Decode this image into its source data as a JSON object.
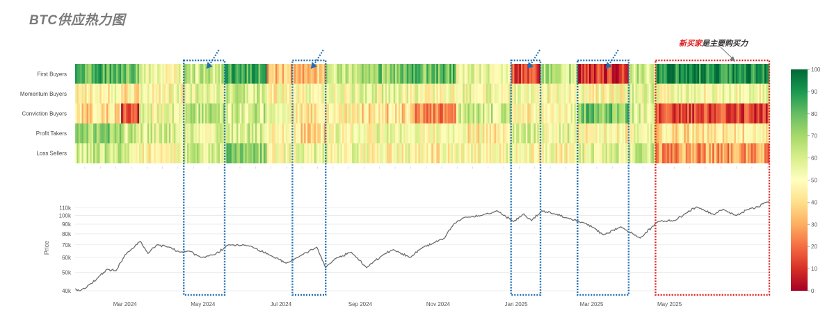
{
  "title": "BTC供应热力图",
  "annotation": {
    "highlight": "新买家",
    "rest": "是主要购买力"
  },
  "colors": {
    "blue_box": "#1f6fb5",
    "red_box": "#e02020",
    "price_line": "#6b6b6b",
    "grid": "#e8e8e8",
    "colorscale": [
      "#a50026",
      "#d73027",
      "#f46d43",
      "#fdae61",
      "#fee08b",
      "#ffffbf",
      "#d9ef8b",
      "#a6d96a",
      "#66bd63",
      "#1a9850",
      "#006837"
    ]
  },
  "chart_data": [
    {
      "type": "heatmap",
      "rows": [
        "First Buyers",
        "Momentum Buyers",
        "Conviction Buyers",
        "Profit Takers",
        "Loss Sellers"
      ],
      "x_range": [
        "2024-01-22",
        "2025-07-18"
      ],
      "value_scale": [
        0,
        100
      ],
      "colorbar_ticks": [
        0,
        10,
        20,
        30,
        40,
        50,
        60,
        70,
        80,
        90,
        100
      ],
      "segments": [
        {
          "start": "2024-01-22",
          "end": "2024-02-27",
          "values": [
            82,
            48,
            40,
            72,
            62
          ]
        },
        {
          "start": "2024-02-27",
          "end": "2024-03-12",
          "values": [
            78,
            45,
            12,
            60,
            55
          ]
        },
        {
          "start": "2024-03-12",
          "end": "2024-04-16",
          "values": [
            52,
            50,
            55,
            58,
            48
          ]
        },
        {
          "start": "2024-04-16",
          "end": "2024-05-18",
          "values": [
            62,
            55,
            65,
            55,
            60
          ]
        },
        {
          "start": "2024-05-18",
          "end": "2024-06-20",
          "values": [
            85,
            60,
            62,
            60,
            72
          ]
        },
        {
          "start": "2024-06-20",
          "end": "2024-07-10",
          "values": [
            32,
            48,
            50,
            45,
            50
          ]
        },
        {
          "start": "2024-07-10",
          "end": "2024-08-05",
          "values": [
            35,
            50,
            45,
            40,
            55
          ]
        },
        {
          "start": "2024-08-05",
          "end": "2024-09-01",
          "values": [
            62,
            52,
            48,
            50,
            52
          ]
        },
        {
          "start": "2024-09-01",
          "end": "2024-10-10",
          "values": [
            75,
            55,
            40,
            52,
            50
          ]
        },
        {
          "start": "2024-10-10",
          "end": "2024-11-15",
          "values": [
            78,
            50,
            25,
            48,
            46
          ]
        },
        {
          "start": "2024-11-15",
          "end": "2024-12-28",
          "values": [
            55,
            52,
            60,
            45,
            50
          ]
        },
        {
          "start": "2024-12-28",
          "end": "2025-01-20",
          "values": [
            12,
            52,
            45,
            58,
            50
          ]
        },
        {
          "start": "2025-01-20",
          "end": "2025-02-18",
          "values": [
            66,
            50,
            52,
            55,
            48
          ]
        },
        {
          "start": "2025-02-18",
          "end": "2025-03-30",
          "values": [
            10,
            48,
            75,
            48,
            55
          ]
        },
        {
          "start": "2025-03-30",
          "end": "2025-04-20",
          "values": [
            62,
            55,
            58,
            55,
            60
          ]
        },
        {
          "start": "2025-04-20",
          "end": "2025-07-18",
          "values": [
            92,
            50,
            14,
            42,
            28
          ]
        }
      ]
    },
    {
      "type": "line",
      "ylabel": "Price",
      "yscale": "log",
      "ylim": [
        40000,
        115000
      ],
      "y_ticks": [
        "40k",
        "50k",
        "60k",
        "70k",
        "80k",
        "90k",
        "100k",
        "110k"
      ],
      "y_tick_values": [
        40000,
        50000,
        60000,
        70000,
        80000,
        90000,
        100000,
        110000
      ],
      "x_ticks": [
        "Mar 2024",
        "May 2024",
        "Jul 2024",
        "Sep 2024",
        "Nov 2024",
        "Jan 2025",
        "Mar 2025",
        "May 2025"
      ],
      "x_tick_dates": [
        "2024-03-01",
        "2024-05-01",
        "2024-07-01",
        "2024-09-01",
        "2024-11-01",
        "2025-01-01",
        "2025-03-01",
        "2025-05-01"
      ],
      "x_range": [
        "2024-01-22",
        "2025-07-18"
      ],
      "series": [
        {
          "points": [
            [
              "2024-01-22",
              41000
            ],
            [
              "2024-01-26",
              40000
            ],
            [
              "2024-02-02",
              43000
            ],
            [
              "2024-02-09",
              47000
            ],
            [
              "2024-02-16",
              52000
            ],
            [
              "2024-02-23",
              51000
            ],
            [
              "2024-03-01",
              62000
            ],
            [
              "2024-03-07",
              67000
            ],
            [
              "2024-03-13",
              73000
            ],
            [
              "2024-03-19",
              63000
            ],
            [
              "2024-03-26",
              70000
            ],
            [
              "2024-04-05",
              68000
            ],
            [
              "2024-04-13",
              64000
            ],
            [
              "2024-04-20",
              65000
            ],
            [
              "2024-04-30",
              60000
            ],
            [
              "2024-05-10",
              62000
            ],
            [
              "2024-05-21",
              70000
            ],
            [
              "2024-06-07",
              69000
            ],
            [
              "2024-06-24",
              61000
            ],
            [
              "2024-07-05",
              56000
            ],
            [
              "2024-07-14",
              60000
            ],
            [
              "2024-07-29",
              68000
            ],
            [
              "2024-08-05",
              53000
            ],
            [
              "2024-08-12",
              59000
            ],
            [
              "2024-08-25",
              64000
            ],
            [
              "2024-09-06",
              53000
            ],
            [
              "2024-09-19",
              62000
            ],
            [
              "2024-09-27",
              66000
            ],
            [
              "2024-10-10",
              60000
            ],
            [
              "2024-10-20",
              68000
            ],
            [
              "2024-10-29",
              72000
            ],
            [
              "2024-11-06",
              76000
            ],
            [
              "2024-11-13",
              90000
            ],
            [
              "2024-11-22",
              98000
            ],
            [
              "2024-12-05",
              100000
            ],
            [
              "2024-12-17",
              106000
            ],
            [
              "2024-12-30",
              93000
            ],
            [
              "2025-01-07",
              102000
            ],
            [
              "2025-01-13",
              94000
            ],
            [
              "2025-01-21",
              106000
            ],
            [
              "2025-01-31",
              102000
            ],
            [
              "2025-02-10",
              97000
            ],
            [
              "2025-02-24",
              91000
            ],
            [
              "2025-03-03",
              86000
            ],
            [
              "2025-03-10",
              79000
            ],
            [
              "2025-03-24",
              87000
            ],
            [
              "2025-04-08",
              76000
            ],
            [
              "2025-04-22",
              93000
            ],
            [
              "2025-05-05",
              94000
            ],
            [
              "2025-05-14",
              103000
            ],
            [
              "2025-05-22",
              111000
            ],
            [
              "2025-06-05",
              101000
            ],
            [
              "2025-06-12",
              108000
            ],
            [
              "2025-06-22",
              100000
            ],
            [
              "2025-07-03",
              109000
            ],
            [
              "2025-07-10",
              111000
            ],
            [
              "2025-07-14",
              117000
            ],
            [
              "2025-07-18",
              118000
            ]
          ]
        }
      ]
    }
  ],
  "highlight_boxes": [
    {
      "start": "2024-04-16",
      "end": "2024-05-18",
      "style": "blue"
    },
    {
      "start": "2024-07-10",
      "end": "2024-08-05",
      "style": "blue"
    },
    {
      "start": "2024-12-28",
      "end": "2025-01-20",
      "style": "blue"
    },
    {
      "start": "2025-02-18",
      "end": "2025-03-30",
      "style": "blue"
    },
    {
      "start": "2025-04-20",
      "end": "2025-07-18",
      "style": "red"
    }
  ]
}
